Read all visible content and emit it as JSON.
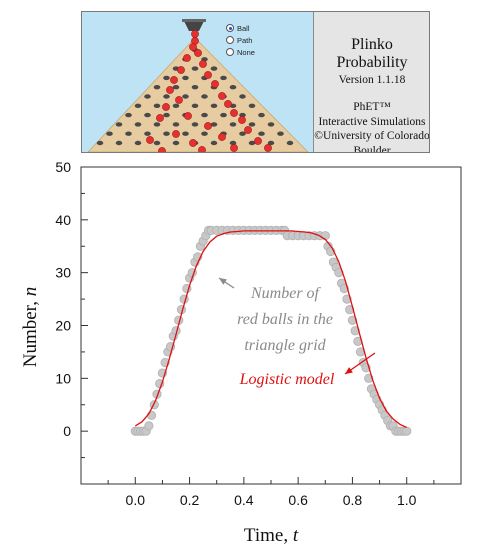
{
  "banner": {
    "title": "Plinko Probability",
    "version": "Version 1.1.18",
    "info_lines": [
      "PhET™",
      "Interactive Simulations",
      "©University of Colorado",
      "Boulder"
    ],
    "radio_options": [
      {
        "label": "Ball",
        "selected": true
      },
      {
        "label": "Path",
        "selected": false
      },
      {
        "label": "None",
        "selected": false
      }
    ]
  },
  "colors": {
    "data_points": "#c8c8c8",
    "model_line": "#e01010",
    "data_annotation": "#8a8a8a",
    "model_annotation": "#e01010",
    "ball": "#e53030",
    "peg": "#4a4a4a",
    "board": "#e6cca0"
  },
  "chart_data": {
    "type": "scatter",
    "xlabel_text": "Time, ",
    "xlabel_var": "t",
    "ylabel_text": "Number, ",
    "ylabel_var": "n",
    "xlim": [
      -0.2,
      1.2
    ],
    "ylim": [
      -10,
      50
    ],
    "xticks": [
      0.0,
      0.2,
      0.4,
      0.6,
      0.8,
      1.0
    ],
    "xtick_labels": [
      "0.0",
      "0.2",
      "0.4",
      "0.6",
      "0.8",
      "1.0"
    ],
    "yticks": [
      0,
      10,
      20,
      30,
      40,
      50
    ],
    "ytick_labels": [
      "0",
      "10",
      "20",
      "30",
      "40",
      "50"
    ],
    "grid": false,
    "annotations": [
      {
        "lines": [
          "Number of",
          "red balls in the",
          "triangle grid"
        ]
      },
      {
        "lines": [
          "Logistic model"
        ]
      }
    ],
    "series": [
      {
        "marker": "circle",
        "x": [
          0.0,
          0.01,
          0.02,
          0.03,
          0.04,
          0.05,
          0.06,
          0.07,
          0.08,
          0.09,
          0.1,
          0.11,
          0.12,
          0.13,
          0.14,
          0.15,
          0.16,
          0.17,
          0.18,
          0.19,
          0.2,
          0.21,
          0.22,
          0.23,
          0.24,
          0.25,
          0.26,
          0.27,
          0.28,
          0.3,
          0.32,
          0.34,
          0.36,
          0.38,
          0.4,
          0.42,
          0.44,
          0.46,
          0.48,
          0.5,
          0.52,
          0.54,
          0.55,
          0.56,
          0.58,
          0.6,
          0.62,
          0.64,
          0.66,
          0.68,
          0.7,
          0.71,
          0.72,
          0.73,
          0.74,
          0.75,
          0.76,
          0.77,
          0.78,
          0.79,
          0.8,
          0.81,
          0.82,
          0.83,
          0.84,
          0.85,
          0.86,
          0.87,
          0.88,
          0.89,
          0.9,
          0.91,
          0.92,
          0.93,
          0.94,
          0.95,
          0.96,
          0.97,
          0.98,
          0.99,
          1.0
        ],
        "y": [
          0,
          0,
          0,
          0,
          0,
          1,
          3,
          5,
          7,
          9,
          11,
          13,
          15,
          16,
          18,
          19,
          21,
          23,
          25,
          27,
          29,
          30,
          32,
          33,
          35,
          36,
          37,
          38,
          38,
          38,
          38,
          38,
          38,
          38,
          38,
          38,
          38,
          38,
          38,
          38,
          38,
          38,
          38,
          37,
          37,
          37,
          37,
          37,
          37,
          37,
          37,
          35,
          34,
          32,
          31,
          30,
          28,
          27,
          25,
          23,
          21,
          19,
          17,
          15,
          13,
          12,
          10,
          8,
          7,
          6,
          5,
          4,
          3,
          2,
          1,
          1,
          0,
          0,
          0,
          0,
          0
        ]
      },
      {
        "type": "line",
        "x": [
          0.0,
          0.025,
          0.05,
          0.075,
          0.1,
          0.125,
          0.15,
          0.175,
          0.2,
          0.225,
          0.25,
          0.275,
          0.3,
          0.325,
          0.35,
          0.375,
          0.4,
          0.425,
          0.45,
          0.475,
          0.5,
          0.525,
          0.55,
          0.575,
          0.6,
          0.625,
          0.65,
          0.675,
          0.7,
          0.725,
          0.75,
          0.775,
          0.8,
          0.825,
          0.85,
          0.875,
          0.9,
          0.925,
          0.95,
          0.975,
          1.0
        ],
        "y": [
          1.0,
          1.8,
          3.3,
          5.8,
          9.3,
          13.6,
          18.3,
          23.1,
          27.6,
          31.3,
          34.0,
          35.8,
          36.9,
          37.4,
          37.7,
          37.8,
          37.9,
          37.9,
          37.9,
          37.9,
          37.9,
          37.9,
          37.9,
          37.9,
          37.8,
          37.7,
          37.5,
          37.1,
          36.3,
          34.7,
          32.0,
          28.3,
          23.6,
          18.7,
          13.9,
          9.6,
          6.2,
          3.8,
          2.3,
          1.3,
          0.7
        ]
      }
    ]
  }
}
